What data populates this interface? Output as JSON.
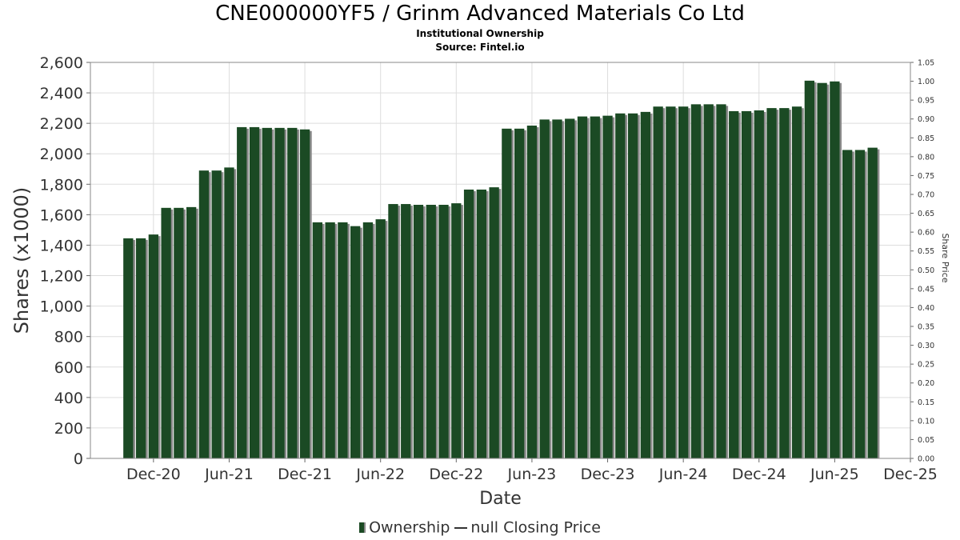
{
  "title": "CNE000000YF5 / Grinm Advanced Materials Co Ltd",
  "subtitle_1": "Institutional Ownership",
  "subtitle_2": "Source: Fintel.io",
  "legend": {
    "ownership_label": "Ownership",
    "price_label": "null Closing Price"
  },
  "colors": {
    "bar": "#1b4a24",
    "bar_shadow": "#8a8a8a",
    "plot_border": "#888888",
    "grid": "#dddddd"
  },
  "chart_data": {
    "type": "bar",
    "title": "CNE000000YF5 / Grinm Advanced Materials Co Ltd",
    "xlabel": "Date",
    "ylabel": "Shares (x1000)",
    "y2label": "Share Price",
    "ylim": [
      0,
      2600
    ],
    "y2lim": [
      0,
      1.05
    ],
    "yticks": [
      "0",
      "200",
      "400",
      "600",
      "800",
      "1,000",
      "1,200",
      "1,400",
      "1,600",
      "1,800",
      "2,000",
      "2,200",
      "2,400",
      "2,600"
    ],
    "y2ticks": [
      "0.00",
      "0.05",
      "0.10",
      "0.15",
      "0.20",
      "0.25",
      "0.30",
      "0.35",
      "0.40",
      "0.45",
      "0.50",
      "0.55",
      "0.60",
      "0.65",
      "0.70",
      "0.75",
      "0.80",
      "0.85",
      "0.90",
      "0.95",
      "1.00",
      "1.05"
    ],
    "xticks": [
      "Dec-20",
      "Jun-21",
      "Dec-21",
      "Jun-22",
      "Dec-22",
      "Jun-23",
      "Dec-23",
      "Jun-24",
      "Dec-24",
      "Jun-25",
      "Dec-25"
    ],
    "xlim": [
      "2020-07",
      "2025-12"
    ],
    "grid": true,
    "legend_position": "bottom",
    "series": [
      {
        "name": "Ownership",
        "x": [
          "2020-10",
          "2020-11",
          "2020-12",
          "2021-01",
          "2021-02",
          "2021-03",
          "2021-04",
          "2021-05",
          "2021-06",
          "2021-07",
          "2021-08",
          "2021-09",
          "2021-10",
          "2021-11",
          "2021-12",
          "2022-01",
          "2022-02",
          "2022-03",
          "2022-04",
          "2022-05",
          "2022-06",
          "2022-07",
          "2022-08",
          "2022-09",
          "2022-10",
          "2022-11",
          "2022-12",
          "2023-01",
          "2023-02",
          "2023-03",
          "2023-04",
          "2023-05",
          "2023-06",
          "2023-07",
          "2023-08",
          "2023-09",
          "2023-10",
          "2023-11",
          "2023-12",
          "2024-01",
          "2024-02",
          "2024-03",
          "2024-04",
          "2024-05",
          "2024-06",
          "2024-07",
          "2024-08",
          "2024-09",
          "2024-10",
          "2024-11",
          "2024-12",
          "2025-01",
          "2025-02",
          "2025-03",
          "2025-04",
          "2025-05",
          "2025-06",
          "2025-07",
          "2025-08",
          "2025-09"
        ],
        "values": [
          1445,
          1445,
          1470,
          1645,
          1645,
          1650,
          1890,
          1890,
          1910,
          2175,
          2175,
          2170,
          2170,
          2170,
          2160,
          1550,
          1550,
          1550,
          1525,
          1550,
          1570,
          1670,
          1670,
          1665,
          1665,
          1665,
          1675,
          1765,
          1765,
          1780,
          2165,
          2165,
          2185,
          2225,
          2225,
          2230,
          2245,
          2245,
          2250,
          2265,
          2265,
          2275,
          2310,
          2310,
          2310,
          2325,
          2325,
          2325,
          2280,
          2280,
          2285,
          2300,
          2300,
          2310,
          2480,
          2465,
          2475,
          2025,
          2025,
          2040
        ]
      }
    ]
  }
}
